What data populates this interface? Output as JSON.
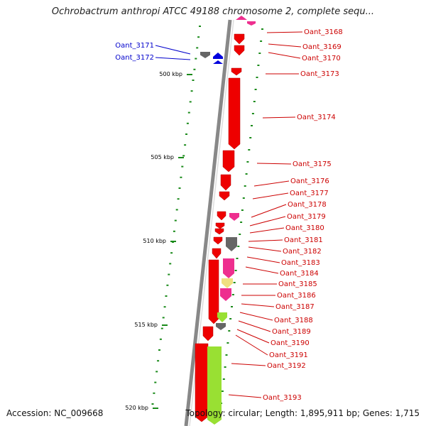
{
  "title": "Ochrobactrum anthropi ATCC 49188 chromosome 2, complete sequ...",
  "footer": {
    "accession": "Accession: NC_009668",
    "summary": "Topology: circular; Length: 1,895,911 bp; Genes: 1,715"
  },
  "colors": {
    "gene_red": "#ee0000",
    "gene_pink": "#ee2f8f",
    "gene_gray": "#666666",
    "gene_yellow": "#f0e080",
    "gene_lime": "#99e033",
    "gene_blue": "#0000dd",
    "label_red": "#cc0000",
    "label_blue": "#0000cc",
    "dots_green": "#1a8a1a",
    "backbone": "#888888"
  },
  "position_labels": [
    "500 kbp",
    "505 kbp",
    "510 kbp",
    "515 kbp",
    "520 kbp"
  ],
  "genes": [
    {
      "name": "Oant_3168",
      "strand": "reverse",
      "color": "pink"
    },
    {
      "name": "Oant_3169",
      "strand": "reverse",
      "color": "red"
    },
    {
      "name": "Oant_3170",
      "strand": "reverse",
      "color": "red"
    },
    {
      "name": "Oant_3171",
      "strand": "forward",
      "color": "gray"
    },
    {
      "name": "Oant_3172",
      "strand": "forward",
      "color": "blue"
    },
    {
      "name": "Oant_3173",
      "strand": "reverse",
      "color": "red"
    },
    {
      "name": "Oant_3174",
      "strand": "reverse",
      "color": "red"
    },
    {
      "name": "Oant_3175",
      "strand": "reverse",
      "color": "red"
    },
    {
      "name": "Oant_3176",
      "strand": "reverse",
      "color": "red"
    },
    {
      "name": "Oant_3177",
      "strand": "reverse",
      "color": "red"
    },
    {
      "name": "Oant_3178",
      "strand": "reverse",
      "color": "red"
    },
    {
      "name": "Oant_3179",
      "strand": "reverse",
      "color": "pink"
    },
    {
      "name": "Oant_3180",
      "strand": "reverse",
      "color": "red"
    },
    {
      "name": "Oant_3181",
      "strand": "reverse",
      "color": "red"
    },
    {
      "name": "Oant_3182",
      "strand": "reverse",
      "color": "red"
    },
    {
      "name": "Oant_3183",
      "strand": "reverse",
      "color": "gray"
    },
    {
      "name": "Oant_3184",
      "strand": "reverse",
      "color": "red"
    },
    {
      "name": "Oant_3185",
      "strand": "reverse",
      "color": "pink"
    },
    {
      "name": "Oant_3186",
      "strand": "reverse",
      "color": "yellow"
    },
    {
      "name": "Oant_3187",
      "strand": "reverse",
      "color": "pink"
    },
    {
      "name": "Oant_3188",
      "strand": "reverse",
      "color": "red"
    },
    {
      "name": "Oant_3189",
      "strand": "reverse",
      "color": "lime"
    },
    {
      "name": "Oant_3190",
      "strand": "reverse",
      "color": "gray"
    },
    {
      "name": "Oant_3191",
      "strand": "reverse",
      "color": "red"
    },
    {
      "name": "Oant_3192",
      "strand": "reverse",
      "color": "red"
    },
    {
      "name": "Oant_3193",
      "strand": "reverse",
      "color": "lime"
    }
  ]
}
